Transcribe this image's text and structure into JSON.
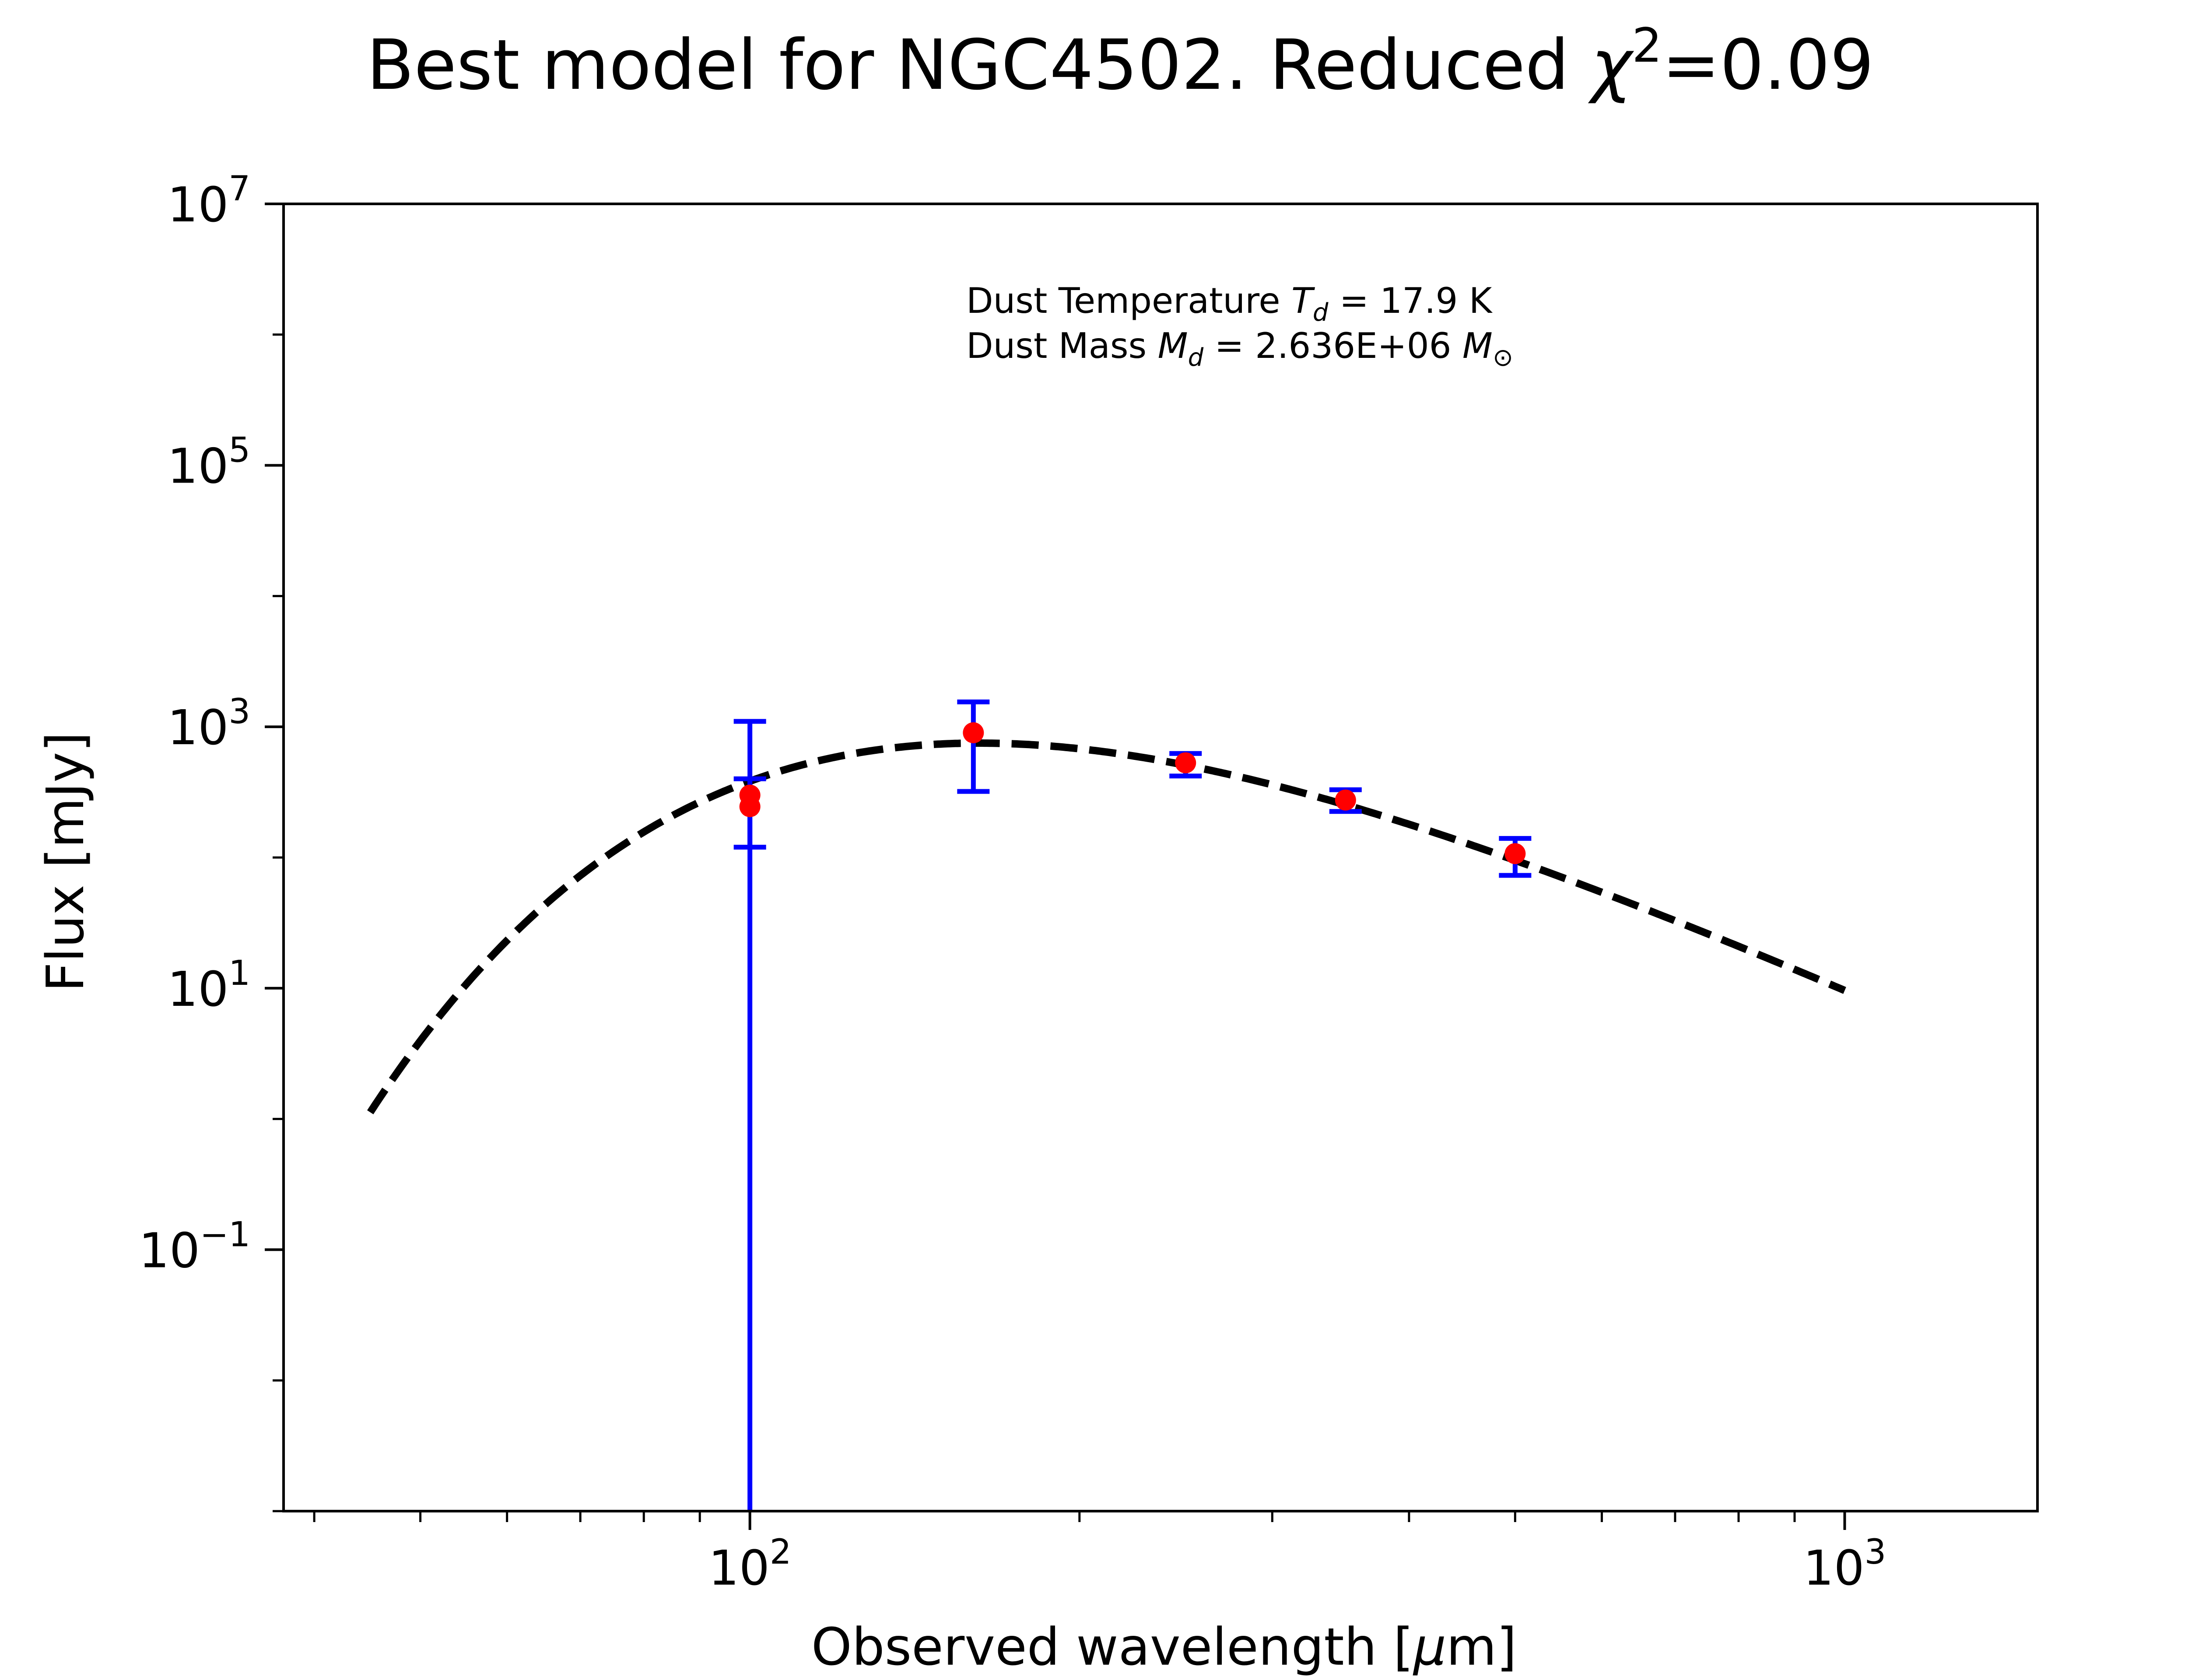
{
  "chart_data": {
    "type": "scatter",
    "title": {
      "prefix": "Best model for NGC4502. Reduced ",
      "chi": "χ",
      "sup": "2",
      "suffix": "=0.09"
    },
    "xlabel": {
      "text": "Observed wavelength [",
      "mu": "μ",
      "tail": "m]"
    },
    "ylabel": "Flux [mJy]",
    "x_scale": "log",
    "y_scale": "log",
    "xlim": [
      37.5,
      1500
    ],
    "ylim": [
      0.001,
      10000000
    ],
    "x_major_ticks": [
      {
        "value": 100,
        "base": "10",
        "exp": "2"
      },
      {
        "value": 1000,
        "base": "10",
        "exp": "3"
      }
    ],
    "y_major_ticks": [
      {
        "value": 0.1,
        "base": "10",
        "exp": "−1"
      },
      {
        "value": 10,
        "base": "10",
        "exp": "1"
      },
      {
        "value": 1000,
        "base": "10",
        "exp": "3"
      },
      {
        "value": 100000,
        "base": "10",
        "exp": "5"
      },
      {
        "value": 10000000,
        "base": "10",
        "exp": "7"
      }
    ],
    "annotation": {
      "line1": {
        "pre": "Dust Temperature ",
        "sym": "T",
        "sub": "d",
        "post": " = 17.9 K"
      },
      "line2": {
        "pre": "Dust Mass ",
        "sym": "M",
        "sub": "d",
        "post": " = 2.636E+06 ",
        "unit": "M",
        "unit_sub": "⊙"
      }
    },
    "series": [
      {
        "kind": "observations",
        "color": "#ff0000",
        "errorbar_color": "#0000ff",
        "points": [
          {
            "x": 100,
            "y": 300,
            "ylo": 0.001,
            "yhi": 1100
          },
          {
            "x": 100,
            "y": 245,
            "ylo": 120,
            "yhi": 400
          },
          {
            "x": 160,
            "y": 900,
            "ylo": 320,
            "yhi": 1550
          },
          {
            "x": 250,
            "y": 530,
            "ylo": 420,
            "yhi": 625
          },
          {
            "x": 350,
            "y": 275,
            "ylo": 225,
            "yhi": 330
          },
          {
            "x": 500,
            "y": 107,
            "ylo": 73,
            "yhi": 140
          }
        ]
      },
      {
        "kind": "model",
        "style": "dashed",
        "color": "#000000",
        "temperature_K": 17.9,
        "peak_mJy": 750,
        "x_range": [
          45,
          1000
        ]
      }
    ]
  }
}
